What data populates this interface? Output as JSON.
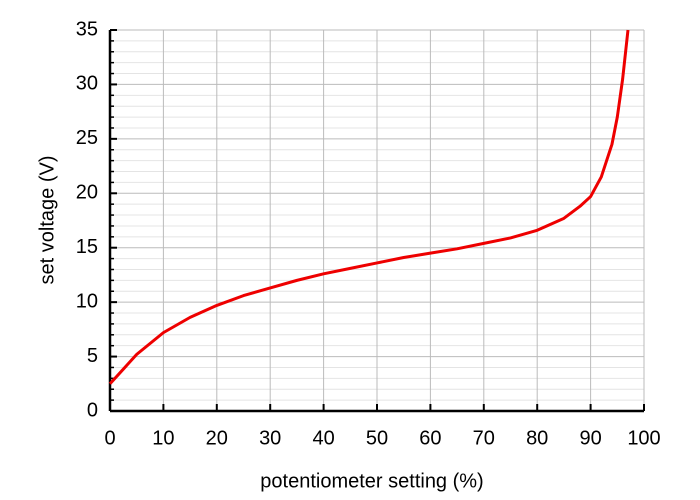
{
  "chart_data": {
    "type": "line",
    "x_label": "potentiometer setting (%)",
    "y_label": "set voltage (V)",
    "x": [
      0,
      5,
      10,
      15,
      20,
      25,
      30,
      35,
      40,
      45,
      50,
      55,
      60,
      65,
      70,
      75,
      80,
      85,
      88,
      90,
      92,
      94,
      95,
      96,
      97
    ],
    "series": [
      {
        "color": "#ee0000",
        "values": [
          2.5,
          5.2,
          7.2,
          8.6,
          9.7,
          10.6,
          11.3,
          12.0,
          12.6,
          13.1,
          13.6,
          14.1,
          14.5,
          14.9,
          15.4,
          15.9,
          16.6,
          17.7,
          18.8,
          19.7,
          21.5,
          24.5,
          27.0,
          30.5,
          35.0
        ]
      }
    ],
    "xlim": [
      0,
      100
    ],
    "xticks": [
      0,
      10,
      20,
      30,
      40,
      50,
      60,
      70,
      80,
      90,
      100
    ],
    "ylim": [
      0,
      35
    ],
    "yticks": [
      0,
      5,
      10,
      15,
      20,
      25,
      30,
      35
    ],
    "minor_yticks": [
      1,
      2,
      3,
      4,
      6,
      7,
      8,
      9,
      11,
      12,
      13,
      14,
      16,
      17,
      18,
      19,
      21,
      22,
      23,
      24,
      26,
      27,
      28,
      29,
      31,
      32,
      33,
      34
    ],
    "grid": true
  }
}
